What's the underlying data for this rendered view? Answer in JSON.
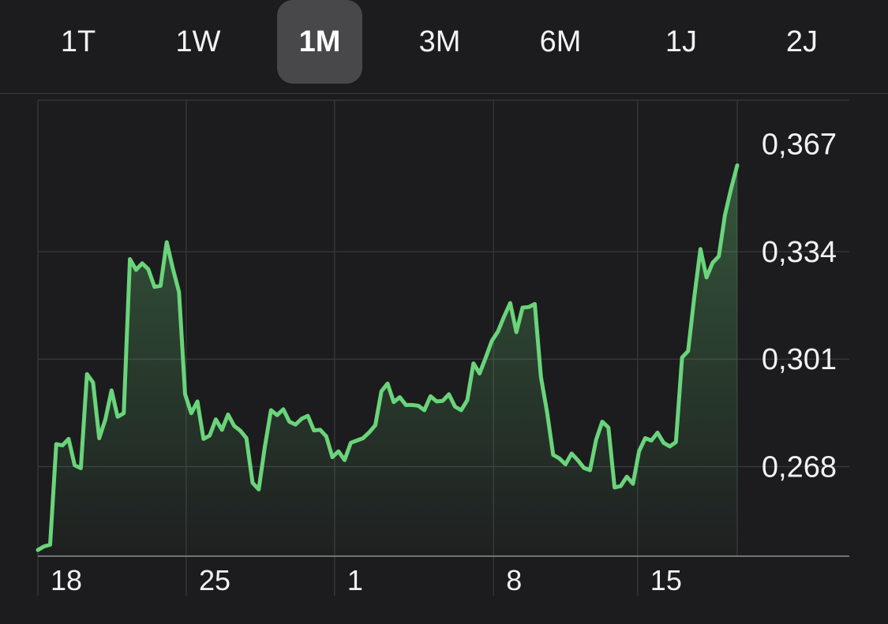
{
  "range_selector": {
    "options": [
      "1T",
      "1W",
      "1M",
      "3M",
      "6M",
      "1J",
      "2J"
    ],
    "selected": "1M"
  },
  "colors": {
    "background": "#1c1c1e",
    "line": "#6ad47a",
    "grid": "#3a3a3c",
    "selected_pill": "#48484a"
  },
  "chart_data": {
    "type": "area",
    "title": "",
    "xlabel": "",
    "ylabel": "",
    "y_ticks": [
      "0,367",
      "0,334",
      "0,301",
      "0,268"
    ],
    "y_tick_values": [
      0.367,
      0.334,
      0.301,
      0.268
    ],
    "ylim": [
      0.2405,
      0.3805
    ],
    "x_ticks": [
      "18",
      "25",
      "1",
      "8",
      "15"
    ],
    "x_tick_positions": [
      0,
      7,
      14,
      21.5,
      28.3
    ],
    "xlim": [
      0,
      33
    ],
    "grid": true,
    "series": [
      {
        "values": [
          0.2424,
          0.2435,
          0.244,
          0.2749,
          0.2745,
          0.2765,
          0.2684,
          0.2675,
          0.2964,
          0.2938,
          0.2767,
          0.2825,
          0.2914,
          0.2833,
          0.2844,
          0.3317,
          0.3284,
          0.3304,
          0.3286,
          0.3232,
          0.3235,
          0.3369,
          0.3288,
          0.3216,
          0.2902,
          0.2844,
          0.288,
          0.2765,
          0.2775,
          0.2825,
          0.2793,
          0.284,
          0.2805,
          0.279,
          0.2767,
          0.263,
          0.261,
          0.2742,
          0.2853,
          0.2838,
          0.2856,
          0.2818,
          0.2809,
          0.2827,
          0.2836,
          0.2791,
          0.2793,
          0.2773,
          0.2709,
          0.2727,
          0.27,
          0.2753,
          0.276,
          0.2767,
          0.2785,
          0.2807,
          0.2911,
          0.2935,
          0.2878,
          0.2893,
          0.2869,
          0.2869,
          0.2867,
          0.2853,
          0.2896,
          0.288,
          0.2882,
          0.2902,
          0.2864,
          0.2853,
          0.2884,
          0.2997,
          0.2966,
          0.3015,
          0.3066,
          0.3095,
          0.3141,
          0.3182,
          0.3093,
          0.3168,
          0.317,
          0.3179,
          0.2955,
          0.2847,
          0.2716,
          0.2705,
          0.2687,
          0.272,
          0.27,
          0.2676,
          0.2669,
          0.2762,
          0.2818,
          0.28,
          0.2616,
          0.262,
          0.2649,
          0.2627,
          0.2727,
          0.2767,
          0.276,
          0.2784,
          0.2753,
          0.2742,
          0.2755,
          0.3015,
          0.3035,
          0.3201,
          0.3348,
          0.3261,
          0.3306,
          0.3326,
          0.3453,
          0.3533,
          0.3605
        ]
      }
    ]
  }
}
